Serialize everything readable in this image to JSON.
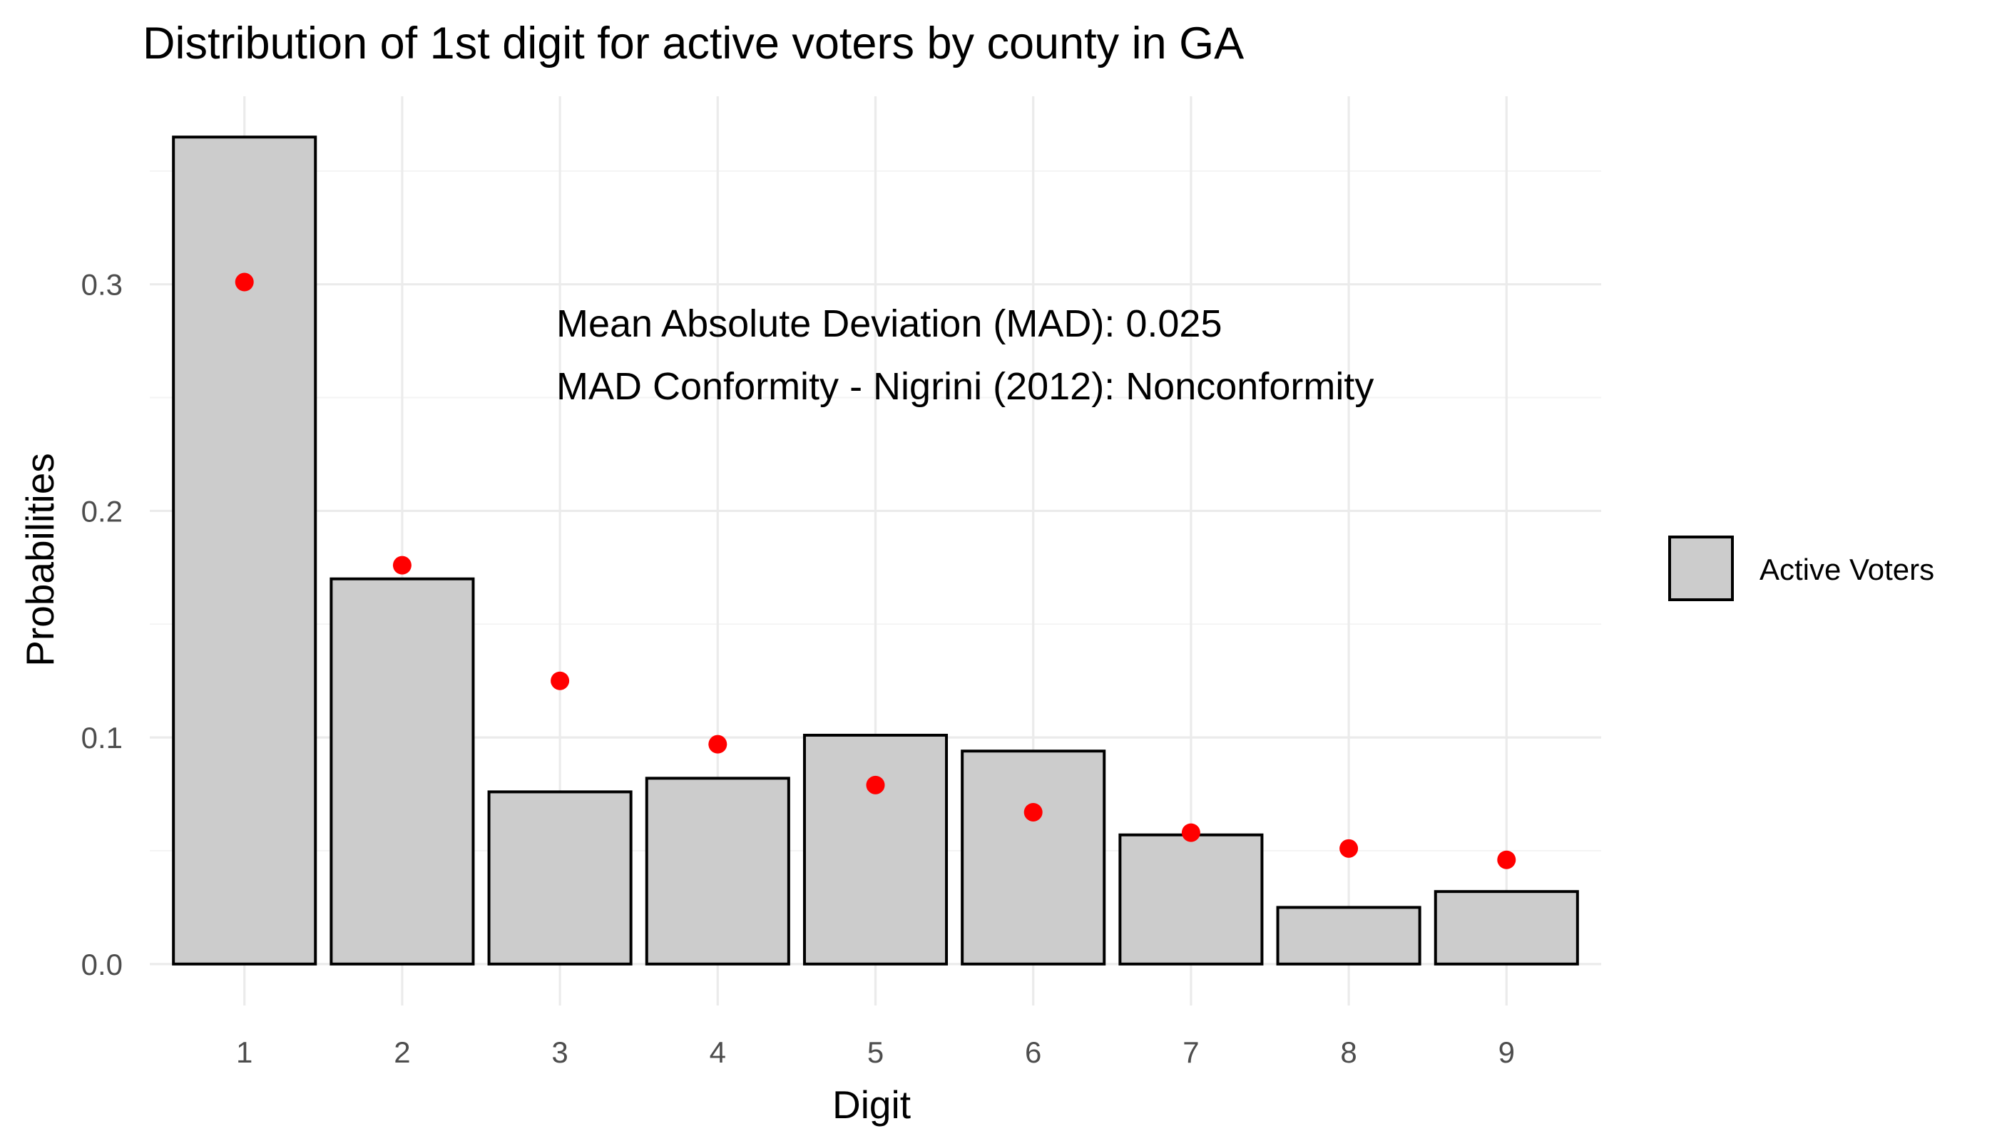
{
  "chart_data": {
    "type": "bar",
    "title": "Distribution of 1st digit for active voters by county in GA",
    "xlabel": "Digit",
    "ylabel": "Probabilities",
    "categories": [
      "1",
      "2",
      "3",
      "4",
      "5",
      "6",
      "7",
      "8",
      "9"
    ],
    "series": [
      {
        "name": "Active Voters",
        "type": "bar",
        "values": [
          0.365,
          0.17,
          0.076,
          0.082,
          0.101,
          0.094,
          0.057,
          0.025,
          0.032
        ],
        "color": "#cccccc"
      },
      {
        "type": "point",
        "values": [
          0.301,
          0.176,
          0.125,
          0.097,
          0.079,
          0.067,
          0.058,
          0.051,
          0.046
        ],
        "color": "#ff0000"
      }
    ],
    "yticks": [
      "0.0",
      "0.1",
      "0.2",
      "0.3"
    ],
    "ylim": [
      -0.0183,
      0.383
    ],
    "annotations": [
      "Mean Absolute Deviation (MAD): 0.025",
      "MAD Conformity - Nigrini (2012): Nonconformity"
    ],
    "grid": true,
    "legend_position": "right"
  }
}
